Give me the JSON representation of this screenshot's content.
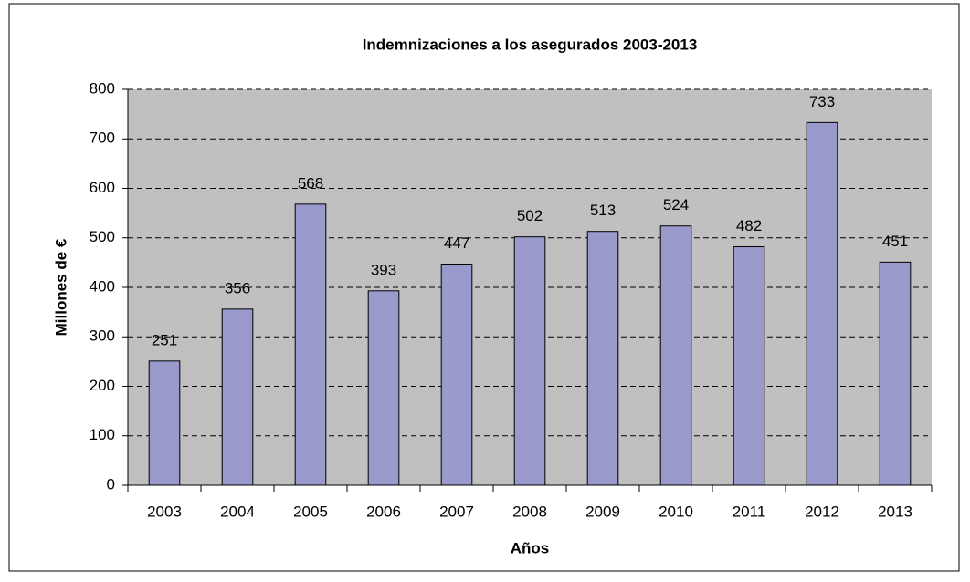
{
  "chart_data": {
    "type": "bar",
    "title": "Indemnizaciones a los asegurados 2003-2013",
    "x_label": "Años",
    "y_label": "Millones de €",
    "categories": [
      "2003",
      "2004",
      "2005",
      "2006",
      "2007",
      "2008",
      "2009",
      "2010",
      "2011",
      "2012",
      "2013"
    ],
    "values": [
      251,
      356,
      568,
      393,
      447,
      502,
      513,
      524,
      482,
      733,
      451
    ],
    "color": "#9999cc",
    "ylim": [
      0,
      800
    ],
    "yticks": [
      0,
      100,
      200,
      300,
      400,
      500,
      600,
      700,
      800
    ],
    "grid": true
  }
}
